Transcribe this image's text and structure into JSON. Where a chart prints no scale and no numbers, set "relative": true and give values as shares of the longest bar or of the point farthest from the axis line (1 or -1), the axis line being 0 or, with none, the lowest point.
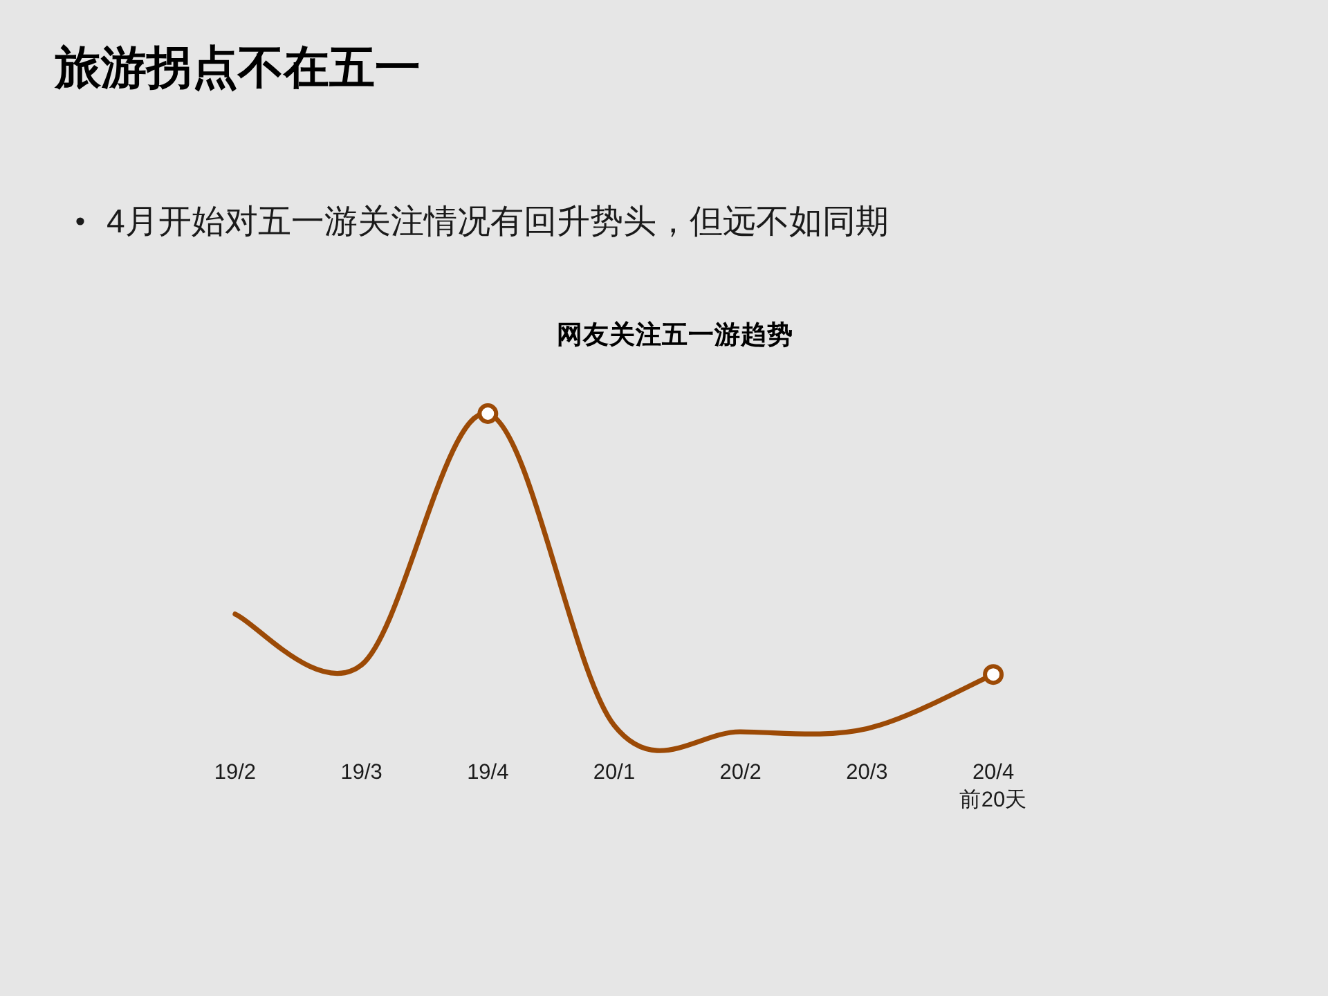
{
  "chart_data": {
    "type": "line",
    "title": "旅游拐点不在五一",
    "subtitle": "网友关注五一游趋势",
    "annotations": [
      "4月开始对五一游关注情况有回升势头，但远不如同期"
    ],
    "categories": [
      "19/2",
      "19/3",
      "19/4",
      "20/1",
      "20/2",
      "20/3",
      "20/4\n前20天"
    ],
    "relative": true,
    "series": [
      {
        "color": "#9c4a06",
        "values": [
          0.37,
          0.21,
          1,
          0.02,
          0,
          0.01,
          0.18
        ]
      },
      {
        "type": "scatter",
        "color": "#9c4a06",
        "marker": "circle",
        "values": [
          null,
          null,
          1,
          null,
          null,
          null,
          0.18
        ]
      }
    ]
  }
}
